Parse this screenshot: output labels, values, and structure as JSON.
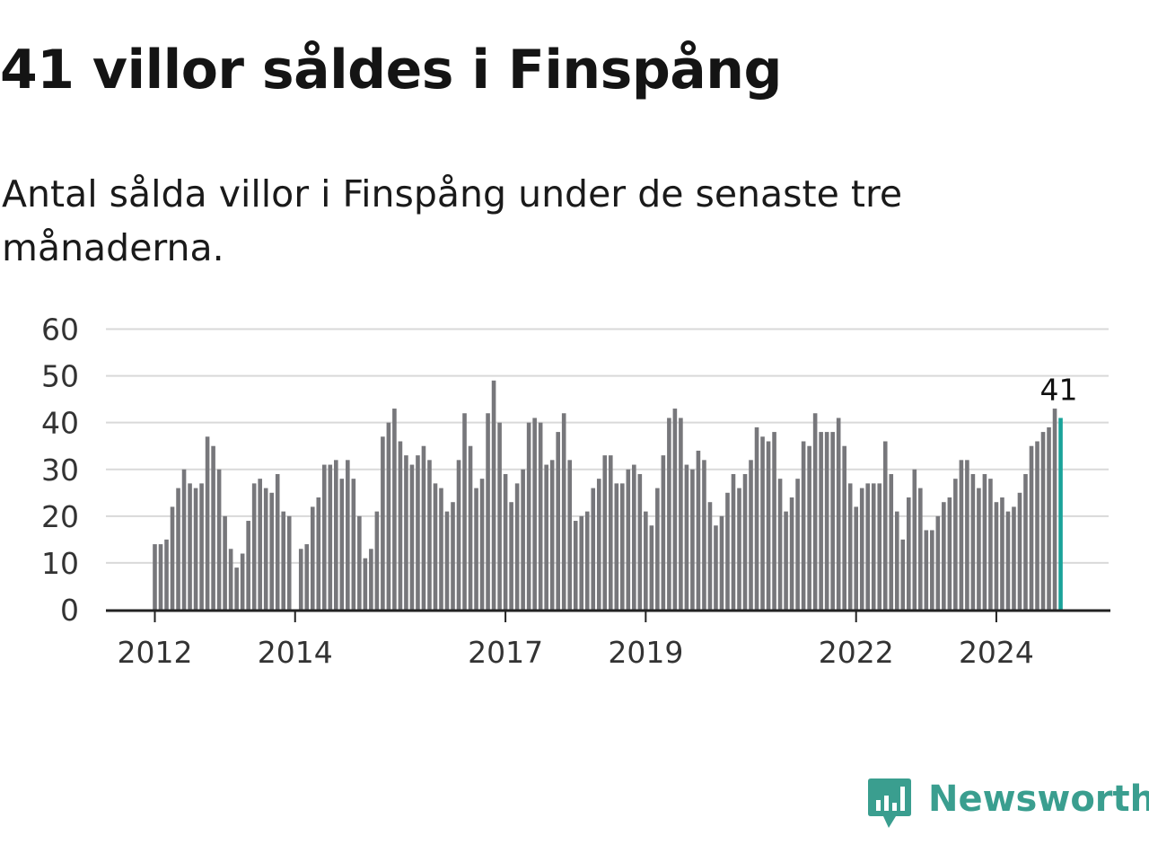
{
  "header": {
    "title": "41 villor såldes i Finspång",
    "subtitle": "Antal sålda villor i Finspång under de senaste tre månaderna."
  },
  "brand": {
    "name": "Newsworthy",
    "logo_icon": "newsworthy-logo-icon",
    "color": "#3a9e8f"
  },
  "colors": {
    "bar": "#77777b",
    "highlight": "#1aa39a",
    "grid": "#d9d9d9",
    "axis": "#222222",
    "label": "#333333"
  },
  "chart_data": {
    "type": "bar",
    "title": "41 villor såldes i Finspång",
    "subtitle": "Antal sålda villor i Finspång under de senaste tre månaderna.",
    "xlabel": "",
    "ylabel": "",
    "ylim": [
      0,
      60
    ],
    "yticks": [
      0,
      10,
      20,
      30,
      40,
      50,
      60
    ],
    "grid": true,
    "x_start": "2012-01",
    "x_tick_labels": [
      {
        "label": "2012",
        "month": "2012-01"
      },
      {
        "label": "2014",
        "month": "2014-01"
      },
      {
        "label": "2017",
        "month": "2017-01"
      },
      {
        "label": "2019",
        "month": "2019-01"
      },
      {
        "label": "2022",
        "month": "2022-01"
      },
      {
        "label": "2024",
        "month": "2024-01"
      }
    ],
    "values": [
      14,
      14,
      15,
      22,
      26,
      30,
      27,
      26,
      27,
      37,
      35,
      30,
      20,
      13,
      9,
      12,
      19,
      27,
      28,
      26,
      25,
      29,
      21,
      20,
      0,
      13,
      14,
      22,
      24,
      31,
      31,
      32,
      28,
      32,
      28,
      20,
      11,
      13,
      21,
      37,
      40,
      43,
      36,
      33,
      31,
      33,
      35,
      32,
      27,
      26,
      21,
      23,
      32,
      42,
      35,
      26,
      28,
      42,
      49,
      40,
      29,
      23,
      27,
      30,
      40,
      41,
      40,
      31,
      32,
      38,
      42,
      32,
      19,
      20,
      21,
      26,
      28,
      33,
      33,
      27,
      27,
      30,
      31,
      29,
      21,
      18,
      26,
      33,
      41,
      43,
      41,
      31,
      30,
      34,
      32,
      23,
      18,
      20,
      25,
      29,
      26,
      29,
      32,
      39,
      37,
      36,
      38,
      28,
      21,
      24,
      28,
      36,
      35,
      42,
      38,
      38,
      38,
      41,
      35,
      27,
      22,
      26,
      27,
      27,
      27,
      36,
      29,
      21,
      15,
      24,
      30,
      26,
      17,
      17,
      20,
      23,
      24,
      28,
      32,
      32,
      29,
      26,
      29,
      28,
      23,
      24,
      21,
      22,
      25,
      29,
      35,
      36,
      38,
      39,
      43,
      41
    ],
    "highlight_last": true,
    "annotation": {
      "label": "41",
      "target": "last"
    }
  }
}
